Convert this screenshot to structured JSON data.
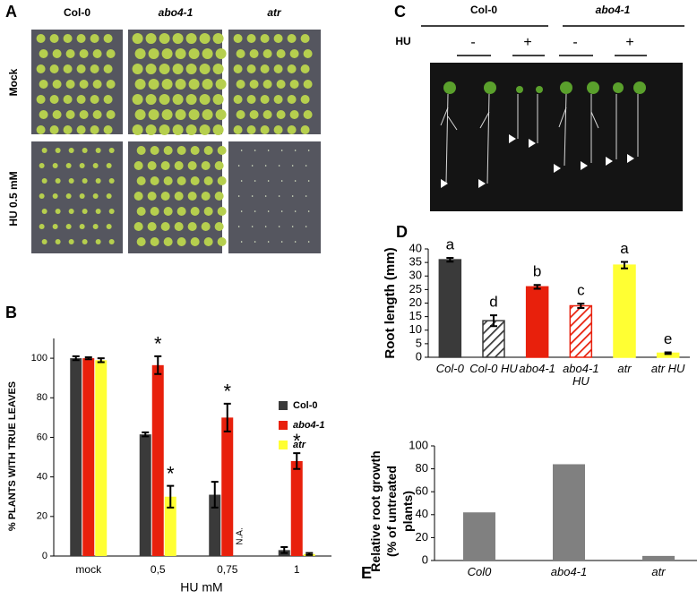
{
  "figure": {
    "panel_letters": [
      "A",
      "B",
      "C",
      "D",
      "E"
    ],
    "panel_a": {
      "columns": [
        "Col-0",
        "abo4-1",
        "atr"
      ],
      "rows": [
        "Mock",
        "HU 0.5 mM"
      ]
    },
    "panel_c": {
      "columns": [
        "Col-0",
        "abo4-1"
      ],
      "treatment_label": "HU",
      "treatments": [
        "-",
        "+",
        "-",
        "+"
      ]
    }
  },
  "chart_data": [
    {
      "type": "bar",
      "xlabel": "HU mM",
      "ylabel": "% PLANTS WITH TRUE LEAVES",
      "categories": [
        "mock",
        "0,5",
        "0,75",
        "1"
      ],
      "series": [
        {
          "name": "Col-0",
          "color": "#3a3a3a",
          "values": [
            100,
            61.5,
            31,
            3
          ],
          "errors": [
            1,
            1,
            6.5,
            1.5
          ]
        },
        {
          "name": "abo4-1",
          "color": "#e8200c",
          "values": [
            100,
            96.5,
            70,
            48
          ],
          "errors": [
            0.5,
            4.5,
            7,
            4
          ]
        },
        {
          "name": "atr",
          "color": "#ffff33",
          "values": [
            99,
            30,
            null,
            1
          ],
          "errors": [
            1,
            5.5,
            null,
            0.5
          ]
        }
      ],
      "annotations": [
        "*",
        "*",
        "*",
        "*",
        "N.A."
      ],
      "ylim": [
        0,
        110
      ],
      "yticks": [
        0,
        20,
        40,
        60,
        80,
        100
      ],
      "legend": "right"
    },
    {
      "type": "bar",
      "ylabel": "Root length (mm)",
      "categories": [
        "Col-0",
        "Col-0 HU",
        "abo4-1",
        "abo4-1 HU",
        "atr",
        "atr HU"
      ],
      "values": [
        36,
        13.5,
        26,
        19,
        34,
        1.5
      ],
      "errors": [
        0.7,
        2,
        0.7,
        0.8,
        1.2,
        0.3
      ],
      "colors": [
        "#3a3a3a",
        "#3a3a3a",
        "#e8200c",
        "#e8200c",
        "#ffff33",
        "#ffff33"
      ],
      "hatched": [
        false,
        true,
        false,
        true,
        false,
        false
      ],
      "annotations": [
        "a",
        "d",
        "b",
        "c",
        "a",
        "e"
      ],
      "ylim": [
        0,
        40
      ],
      "yticks": [
        0,
        5,
        10,
        15,
        20,
        25,
        30,
        35,
        40
      ]
    },
    {
      "type": "bar",
      "ylabel": "Relative root growth (% of untreated plants)",
      "categories": [
        "Col0",
        "abo4-1",
        "atr"
      ],
      "values": [
        42,
        84,
        4
      ],
      "color": "#808080",
      "ylim": [
        0,
        100
      ],
      "yticks": [
        0,
        20,
        40,
        60,
        80,
        100
      ]
    }
  ]
}
